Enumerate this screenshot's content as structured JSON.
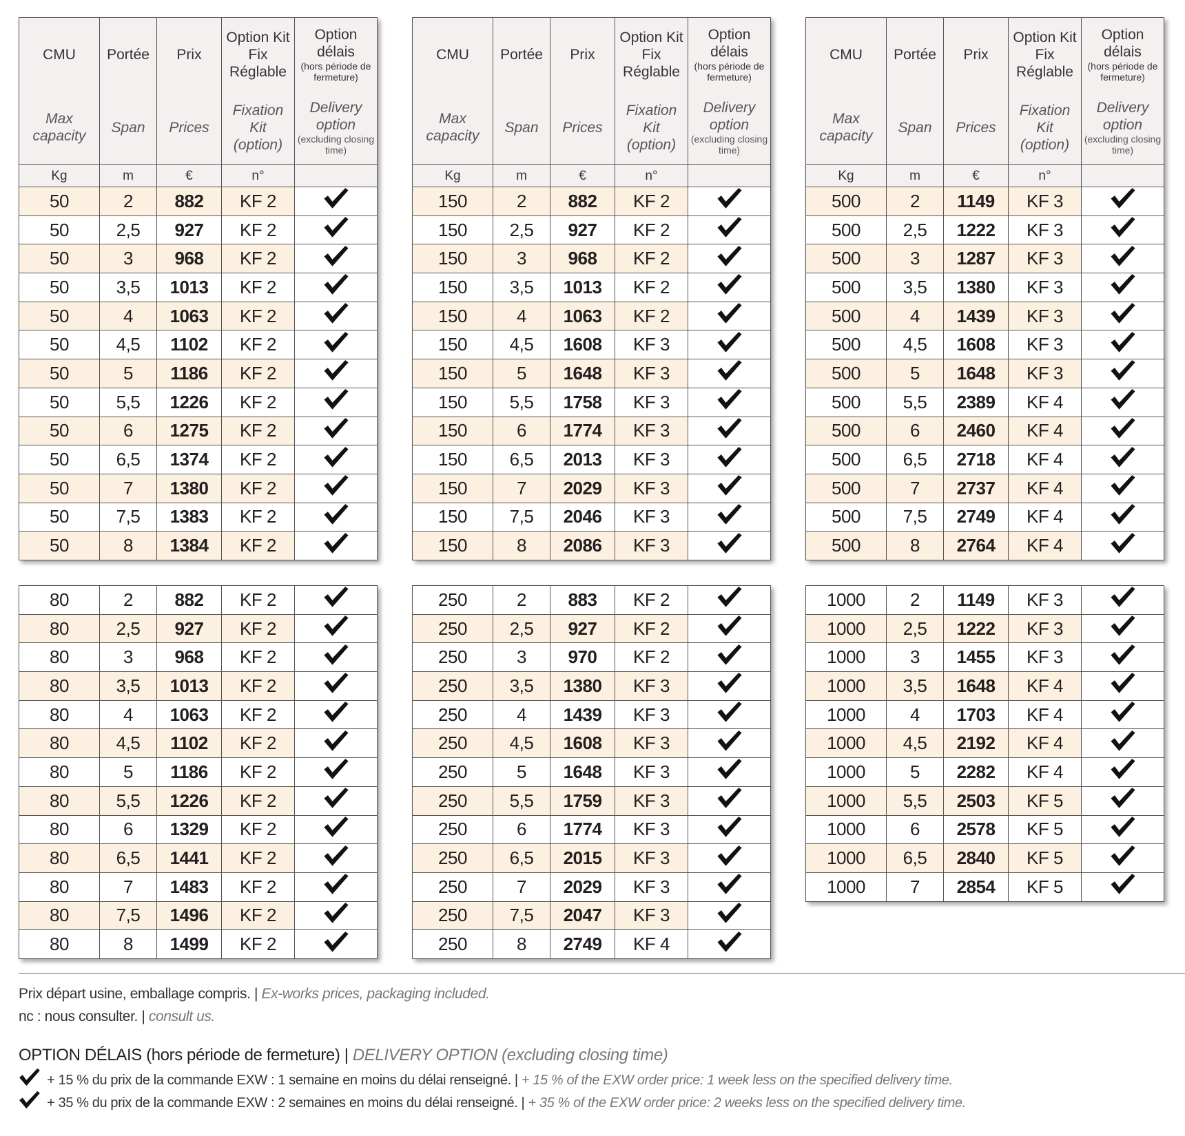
{
  "header": {
    "cols": [
      {
        "fr": "CMU",
        "en": "Max capacity",
        "unit": "Kg"
      },
      {
        "fr": "Portée",
        "en": "Span",
        "unit": "m"
      },
      {
        "fr": "Prix",
        "en": "Prices",
        "unit": "€"
      },
      {
        "fr": "Option Kit Fix Réglable",
        "en": "Fixation Kit (option)",
        "unit": "n°"
      },
      {
        "fr": "Option délais",
        "fr_note": "(hors période de fermeture)",
        "en": "Delivery option",
        "en_note": "(excluding closing time)"
      }
    ]
  },
  "tables": [
    {
      "rows": [
        [
          50,
          "2",
          882,
          "KF 2"
        ],
        [
          50,
          "2,5",
          927,
          "KF 2"
        ],
        [
          50,
          "3",
          968,
          "KF 2"
        ],
        [
          50,
          "3,5",
          1013,
          "KF 2"
        ],
        [
          50,
          "4",
          1063,
          "KF 2"
        ],
        [
          50,
          "4,5",
          1102,
          "KF 2"
        ],
        [
          50,
          "5",
          1186,
          "KF 2"
        ],
        [
          50,
          "5,5",
          1226,
          "KF 2"
        ],
        [
          50,
          "6",
          1275,
          "KF 2"
        ],
        [
          50,
          "6,5",
          1374,
          "KF 2"
        ],
        [
          50,
          "7",
          1380,
          "KF 2"
        ],
        [
          50,
          "7,5",
          1383,
          "KF 2"
        ],
        [
          50,
          "8",
          1384,
          "KF 2"
        ]
      ]
    },
    {
      "rows": [
        [
          150,
          "2",
          882,
          "KF 2"
        ],
        [
          150,
          "2,5",
          927,
          "KF 2"
        ],
        [
          150,
          "3",
          968,
          "KF 2"
        ],
        [
          150,
          "3,5",
          1013,
          "KF 2"
        ],
        [
          150,
          "4",
          1063,
          "KF 2"
        ],
        [
          150,
          "4,5",
          1608,
          "KF 3"
        ],
        [
          150,
          "5",
          1648,
          "KF 3"
        ],
        [
          150,
          "5,5",
          1758,
          "KF 3"
        ],
        [
          150,
          "6",
          1774,
          "KF 3"
        ],
        [
          150,
          "6,5",
          2013,
          "KF 3"
        ],
        [
          150,
          "7",
          2029,
          "KF 3"
        ],
        [
          150,
          "7,5",
          2046,
          "KF 3"
        ],
        [
          150,
          "8",
          2086,
          "KF 3"
        ]
      ]
    },
    {
      "rows": [
        [
          500,
          "2",
          1149,
          "KF 3"
        ],
        [
          500,
          "2,5",
          1222,
          "KF 3"
        ],
        [
          500,
          "3",
          1287,
          "KF 3"
        ],
        [
          500,
          "3,5",
          1380,
          "KF 3"
        ],
        [
          500,
          "4",
          1439,
          "KF 3"
        ],
        [
          500,
          "4,5",
          1608,
          "KF 3"
        ],
        [
          500,
          "5",
          1648,
          "KF 3"
        ],
        [
          500,
          "5,5",
          2389,
          "KF 4"
        ],
        [
          500,
          "6",
          2460,
          "KF 4"
        ],
        [
          500,
          "6,5",
          2718,
          "KF 4"
        ],
        [
          500,
          "7",
          2737,
          "KF 4"
        ],
        [
          500,
          "7,5",
          2749,
          "KF 4"
        ],
        [
          500,
          "8",
          2764,
          "KF 4"
        ]
      ]
    },
    {
      "rows": [
        [
          80,
          "2",
          882,
          "KF 2"
        ],
        [
          80,
          "2,5",
          927,
          "KF 2"
        ],
        [
          80,
          "3",
          968,
          "KF 2"
        ],
        [
          80,
          "3,5",
          1013,
          "KF 2"
        ],
        [
          80,
          "4",
          1063,
          "KF 2"
        ],
        [
          80,
          "4,5",
          1102,
          "KF 2"
        ],
        [
          80,
          "5",
          1186,
          "KF 2"
        ],
        [
          80,
          "5,5",
          1226,
          "KF 2"
        ],
        [
          80,
          "6",
          1329,
          "KF 2"
        ],
        [
          80,
          "6,5",
          1441,
          "KF 2"
        ],
        [
          80,
          "7",
          1483,
          "KF 2"
        ],
        [
          80,
          "7,5",
          1496,
          "KF 2"
        ],
        [
          80,
          "8",
          1499,
          "KF 2"
        ]
      ]
    },
    {
      "rows": [
        [
          250,
          "2",
          883,
          "KF 2"
        ],
        [
          250,
          "2,5",
          927,
          "KF 2"
        ],
        [
          250,
          "3",
          970,
          "KF 2"
        ],
        [
          250,
          "3,5",
          1380,
          "KF 3"
        ],
        [
          250,
          "4",
          1439,
          "KF 3"
        ],
        [
          250,
          "4,5",
          1608,
          "KF 3"
        ],
        [
          250,
          "5",
          1648,
          "KF 3"
        ],
        [
          250,
          "5,5",
          1759,
          "KF 3"
        ],
        [
          250,
          "6",
          1774,
          "KF 3"
        ],
        [
          250,
          "6,5",
          2015,
          "KF 3"
        ],
        [
          250,
          "7",
          2029,
          "KF 3"
        ],
        [
          250,
          "7,5",
          2047,
          "KF 3"
        ],
        [
          250,
          "8",
          2749,
          "KF 4"
        ]
      ]
    },
    {
      "rows": [
        [
          1000,
          "2",
          1149,
          "KF 3"
        ],
        [
          1000,
          "2,5",
          1222,
          "KF 3"
        ],
        [
          1000,
          "3",
          1455,
          "KF 3"
        ],
        [
          1000,
          "3,5",
          1648,
          "KF 4"
        ],
        [
          1000,
          "4",
          1703,
          "KF 4"
        ],
        [
          1000,
          "4,5",
          2192,
          "KF 4"
        ],
        [
          1000,
          "5",
          2282,
          "KF 4"
        ],
        [
          1000,
          "5,5",
          2503,
          "KF 5"
        ],
        [
          1000,
          "6",
          2578,
          "KF 5"
        ],
        [
          1000,
          "6,5",
          2840,
          "KF 5"
        ],
        [
          1000,
          "7",
          2854,
          "KF 5"
        ]
      ]
    }
  ],
  "footer": {
    "separator": "|",
    "lines": [
      {
        "fr": "Prix départ usine, emballage compris.",
        "en": "Ex-works prices, packaging included."
      },
      {
        "fr": "nc : nous consulter.",
        "en": "consult us."
      }
    ],
    "option_title": {
      "fr": "OPTION DÉLAIS (hors période de fermeture)",
      "en": "DELIVERY OPTION (excluding closing time)"
    },
    "options": [
      {
        "fr": "+ 15 % du prix de la commande EXW : 1 semaine en moins du délai renseigné.",
        "en": "+ 15 % of the EXW order price: 1 week less on the specified delivery time."
      },
      {
        "fr": "+ 35 % du prix de la commande EXW : 2 semaines en moins du délai renseigné.",
        "en": "+ 35 % of the EXW order price: 2 weeks less on the specified delivery time."
      }
    ]
  }
}
